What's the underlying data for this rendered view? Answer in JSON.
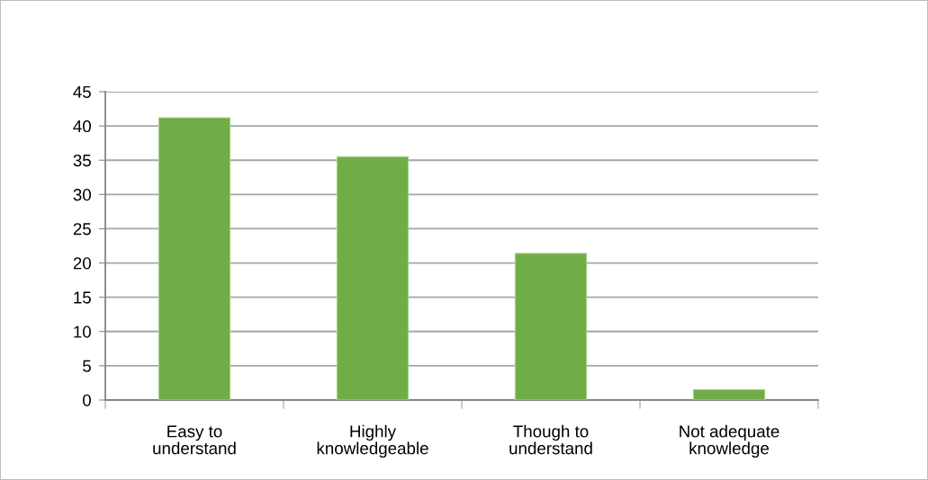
{
  "chart_data": {
    "type": "bar",
    "categories": [
      "Easy to\nunderstand",
      "Highly\nknowledgeable",
      "Though to\nunderstand",
      "Not adequate\nknowledge"
    ],
    "values": [
      41.2,
      35.5,
      21.4,
      1.5
    ],
    "color": "#70ad47",
    "ylim": [
      0,
      45
    ],
    "yticks": [
      0,
      5,
      10,
      15,
      20,
      25,
      30,
      35,
      40,
      45
    ],
    "grid": "y",
    "legend": false
  }
}
